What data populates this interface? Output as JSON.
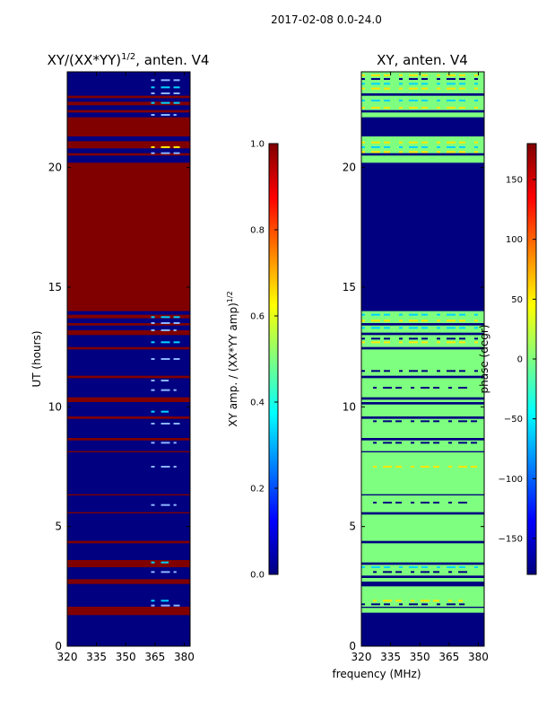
{
  "suptitle": "2017-02-08 0.0-24.0",
  "colors": {
    "red": "#800000",
    "blue": "#000080",
    "green": "#7FFF7F",
    "cyan": "#00D4FF",
    "yellow": "#FFE600",
    "light_blue": "#8CB4FF"
  },
  "chart_data": [
    {
      "type": "heatmap",
      "title_main": "XY/(XX*YY)",
      "title_sup": "1/2",
      "title_rest": ", anten. V4",
      "xlabel": "",
      "ylabel": "UT (hours)",
      "xlim": [
        320,
        383
      ],
      "ylim": [
        0,
        24
      ],
      "xticks": [
        320,
        335,
        350,
        365,
        380
      ],
      "yticks": [
        0,
        5,
        10,
        15,
        20
      ],
      "colorbar": {
        "label_main": "XY amp. / (XX*YY amp)",
        "label_sup": "1/2",
        "range": [
          0.0,
          1.0
        ],
        "ticks": [
          "0.0",
          "0.2",
          "0.4",
          "0.6",
          "0.8",
          "1.0"
        ],
        "tick_values": [
          0.0,
          0.2,
          0.4,
          0.6,
          0.8,
          1.0
        ]
      },
      "background": "blue",
      "bands": [
        {
          "y0": 1.3,
          "y1": 1.65,
          "c": "red"
        },
        {
          "y0": 2.6,
          "y1": 2.8,
          "c": "red"
        },
        {
          "y0": 3.3,
          "y1": 3.6,
          "c": "red"
        },
        {
          "y0": 4.3,
          "y1": 4.4,
          "c": "red"
        },
        {
          "y0": 5.55,
          "y1": 5.6,
          "c": "red"
        },
        {
          "y0": 6.3,
          "y1": 6.35,
          "c": "red"
        },
        {
          "y0": 8.1,
          "y1": 8.15,
          "c": "red"
        },
        {
          "y0": 8.6,
          "y1": 8.7,
          "c": "red"
        },
        {
          "y0": 9.5,
          "y1": 9.6,
          "c": "red"
        },
        {
          "y0": 10.2,
          "y1": 10.4,
          "c": "red"
        },
        {
          "y0": 11.2,
          "y1": 11.3,
          "c": "red"
        },
        {
          "y0": 12.4,
          "y1": 12.5,
          "c": "red"
        },
        {
          "y0": 13.0,
          "y1": 13.2,
          "c": "red"
        },
        {
          "y0": 13.4,
          "y1": 13.5,
          "c": "red"
        },
        {
          "y0": 13.7,
          "y1": 13.85,
          "c": "red"
        },
        {
          "y0": 14.0,
          "y1": 20.2,
          "c": "red"
        },
        {
          "y0": 20.5,
          "y1": 20.6,
          "c": "red"
        },
        {
          "y0": 20.8,
          "y1": 21.1,
          "c": "red"
        },
        {
          "y0": 21.3,
          "y1": 22.1,
          "c": "red"
        },
        {
          "y0": 22.3,
          "y1": 22.4,
          "c": "red"
        },
        {
          "y0": 22.6,
          "y1": 22.75,
          "c": "red"
        },
        {
          "y0": 22.9,
          "y1": 23.0,
          "c": "red"
        }
      ],
      "speckles": [
        {
          "x0": 363,
          "x1": 380,
          "y": 1.7,
          "c": "light_blue"
        },
        {
          "x0": 363,
          "x1": 372,
          "y": 1.9,
          "c": "cyan"
        },
        {
          "x0": 363,
          "x1": 376,
          "y": 3.1,
          "c": "light_blue"
        },
        {
          "x0": 363,
          "x1": 372,
          "y": 3.5,
          "c": "cyan"
        },
        {
          "x0": 363,
          "x1": 376,
          "y": 5.9,
          "c": "light_blue"
        },
        {
          "x0": 363,
          "x1": 376,
          "y": 7.5,
          "c": "light_blue"
        },
        {
          "x0": 363,
          "x1": 376,
          "y": 8.5,
          "c": "light_blue"
        },
        {
          "x0": 363,
          "x1": 380,
          "y": 9.3,
          "c": "light_blue"
        },
        {
          "x0": 363,
          "x1": 372,
          "y": 9.8,
          "c": "cyan"
        },
        {
          "x0": 363,
          "x1": 376,
          "y": 10.7,
          "c": "light_blue"
        },
        {
          "x0": 363,
          "x1": 372,
          "y": 11.1,
          "c": "light_blue"
        },
        {
          "x0": 363,
          "x1": 380,
          "y": 12.0,
          "c": "light_blue"
        },
        {
          "x0": 363,
          "x1": 380,
          "y": 12.7,
          "c": "cyan"
        },
        {
          "x0": 363,
          "x1": 376,
          "y": 13.2,
          "c": "light_blue"
        },
        {
          "x0": 363,
          "x1": 380,
          "y": 13.5,
          "c": "light_blue"
        },
        {
          "x0": 363,
          "x1": 380,
          "y": 13.75,
          "c": "cyan"
        },
        {
          "x0": 363,
          "x1": 380,
          "y": 20.6,
          "c": "light_blue"
        },
        {
          "x0": 363,
          "x1": 380,
          "y": 20.85,
          "c": "yellow"
        },
        {
          "x0": 363,
          "x1": 376,
          "y": 22.2,
          "c": "light_blue"
        },
        {
          "x0": 363,
          "x1": 380,
          "y": 22.7,
          "c": "cyan"
        },
        {
          "x0": 363,
          "x1": 380,
          "y": 23.1,
          "c": "light_blue"
        },
        {
          "x0": 363,
          "x1": 380,
          "y": 23.35,
          "c": "cyan"
        },
        {
          "x0": 363,
          "x1": 380,
          "y": 23.65,
          "c": "light_blue"
        }
      ]
    },
    {
      "type": "heatmap",
      "title_main": "XY, anten. V4",
      "title_sup": "",
      "title_rest": "",
      "xlabel": "frequency (MHz)",
      "ylabel": "",
      "xlim": [
        320,
        383
      ],
      "ylim": [
        0,
        24
      ],
      "xticks": [
        320,
        335,
        350,
        365,
        380
      ],
      "yticks": [
        0,
        5,
        10,
        15,
        20
      ],
      "colorbar": {
        "label_main": "phase (degr)",
        "label_sup": "",
        "range": [
          -180,
          180
        ],
        "ticks": [
          "−150",
          "−100",
          "−50",
          "0",
          "50",
          "100",
          "150"
        ],
        "tick_values": [
          -150,
          -100,
          -50,
          0,
          50,
          100,
          150
        ]
      },
      "background": "green",
      "bands": [
        {
          "y0": 0.0,
          "y1": 1.4,
          "c": "blue"
        },
        {
          "y0": 1.6,
          "y1": 1.65,
          "c": "blue"
        },
        {
          "y0": 2.5,
          "y1": 2.7,
          "c": "blue"
        },
        {
          "y0": 2.85,
          "y1": 2.95,
          "c": "blue"
        },
        {
          "y0": 3.4,
          "y1": 3.5,
          "c": "blue"
        },
        {
          "y0": 4.3,
          "y1": 4.4,
          "c": "blue"
        },
        {
          "y0": 5.5,
          "y1": 5.6,
          "c": "blue"
        },
        {
          "y0": 6.3,
          "y1": 6.35,
          "c": "blue"
        },
        {
          "y0": 8.1,
          "y1": 8.15,
          "c": "blue"
        },
        {
          "y0": 8.6,
          "y1": 8.7,
          "c": "blue"
        },
        {
          "y0": 9.5,
          "y1": 9.6,
          "c": "blue"
        },
        {
          "y0": 10.1,
          "y1": 10.2,
          "c": "blue"
        },
        {
          "y0": 10.3,
          "y1": 10.4,
          "c": "blue"
        },
        {
          "y0": 11.2,
          "y1": 11.3,
          "c": "blue"
        },
        {
          "y0": 12.4,
          "y1": 12.5,
          "c": "blue"
        },
        {
          "y0": 13.0,
          "y1": 13.1,
          "c": "blue"
        },
        {
          "y0": 13.4,
          "y1": 13.5,
          "c": "blue"
        },
        {
          "y0": 14.0,
          "y1": 20.2,
          "c": "blue"
        },
        {
          "y0": 20.5,
          "y1": 20.6,
          "c": "blue"
        },
        {
          "y0": 21.3,
          "y1": 22.1,
          "c": "blue"
        },
        {
          "y0": 22.3,
          "y1": 22.4,
          "c": "blue"
        },
        {
          "y0": 23.0,
          "y1": 23.1,
          "c": "blue"
        }
      ],
      "speckles": [
        {
          "x0": 320,
          "x1": 373,
          "y": 1.75,
          "c": "blue"
        },
        {
          "x0": 326,
          "x1": 372,
          "y": 1.9,
          "c": "yellow"
        },
        {
          "x0": 326,
          "x1": 376,
          "y": 3.1,
          "c": "blue"
        },
        {
          "x0": 320,
          "x1": 382,
          "y": 3.3,
          "c": "cyan"
        },
        {
          "x0": 326,
          "x1": 376,
          "y": 6.0,
          "c": "blue"
        },
        {
          "x0": 326,
          "x1": 380,
          "y": 7.5,
          "c": "yellow"
        },
        {
          "x0": 326,
          "x1": 380,
          "y": 8.5,
          "c": "blue"
        },
        {
          "x0": 326,
          "x1": 380,
          "y": 9.4,
          "c": "blue"
        },
        {
          "x0": 326,
          "x1": 376,
          "y": 10.8,
          "c": "blue"
        },
        {
          "x0": 320,
          "x1": 380,
          "y": 11.5,
          "c": "blue"
        },
        {
          "x0": 320,
          "x1": 382,
          "y": 12.7,
          "c": "yellow"
        },
        {
          "x0": 320,
          "x1": 382,
          "y": 12.85,
          "c": "blue"
        },
        {
          "x0": 320,
          "x1": 382,
          "y": 13.3,
          "c": "cyan"
        },
        {
          "x0": 320,
          "x1": 382,
          "y": 13.6,
          "c": "yellow"
        },
        {
          "x0": 320,
          "x1": 382,
          "y": 13.85,
          "c": "cyan"
        },
        {
          "x0": 320,
          "x1": 382,
          "y": 20.65,
          "c": "yellow"
        },
        {
          "x0": 320,
          "x1": 382,
          "y": 20.85,
          "c": "cyan"
        },
        {
          "x0": 320,
          "x1": 382,
          "y": 21.05,
          "c": "yellow"
        },
        {
          "x0": 320,
          "x1": 382,
          "y": 22.5,
          "c": "yellow"
        },
        {
          "x0": 320,
          "x1": 382,
          "y": 22.8,
          "c": "cyan"
        },
        {
          "x0": 320,
          "x1": 382,
          "y": 23.3,
          "c": "yellow"
        },
        {
          "x0": 320,
          "x1": 382,
          "y": 23.5,
          "c": "cyan"
        },
        {
          "x0": 320,
          "x1": 382,
          "y": 23.7,
          "c": "blue"
        },
        {
          "x0": 320,
          "x1": 382,
          "y": 23.85,
          "c": "yellow"
        }
      ]
    }
  ]
}
